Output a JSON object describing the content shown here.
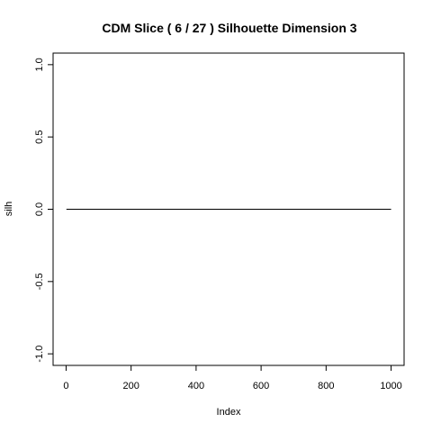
{
  "chart_data": {
    "type": "line",
    "title": "CDM Slice ( 6 / 27 )  Silhouette Dimension 3",
    "xlabel": "Index",
    "ylabel": "silh",
    "xlim": [
      -40,
      1040
    ],
    "ylim": [
      -1.08,
      1.08
    ],
    "x_ticks": [
      0,
      200,
      400,
      600,
      800,
      1000
    ],
    "y_ticks": [
      -1.0,
      -0.5,
      0.0,
      0.5,
      1.0
    ],
    "x_tick_labels": [
      "0",
      "200",
      "400",
      "600",
      "800",
      "1000"
    ],
    "y_tick_labels": [
      "-1.0",
      "-0.5",
      "0.0",
      "0.5",
      "1.0"
    ],
    "grid": false,
    "series": [
      {
        "x": [
          1,
          1000
        ],
        "y": [
          0.0,
          0.0
        ],
        "color": "#000000"
      }
    ]
  }
}
